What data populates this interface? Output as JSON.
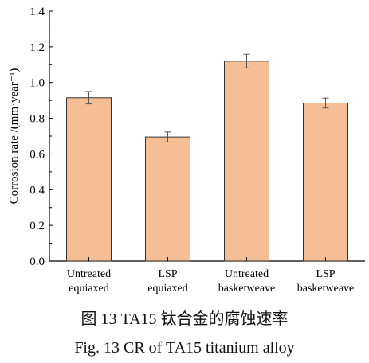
{
  "chart_data": {
    "type": "bar",
    "categories": [
      [
        "Untreated",
        "equiaxed"
      ],
      [
        "LSP",
        "equiaxed"
      ],
      [
        "Untreated",
        "basketweave"
      ],
      [
        "LSP",
        "basketweave"
      ]
    ],
    "values": [
      0.915,
      0.695,
      1.12,
      0.885
    ],
    "errors": [
      0.035,
      0.028,
      0.038,
      0.028
    ],
    "ylabel": "Corrosion rate /(mm·year⁻¹)",
    "xlabel": "",
    "ylim": [
      0,
      1.4
    ],
    "yticks": [
      "0.0",
      "0.2",
      "0.4",
      "0.6",
      "0.8",
      "1.0",
      "1.2",
      "1.4"
    ],
    "grid": false,
    "colors": {
      "bar_fill": "#F5BE94",
      "bar_stroke": "#333333",
      "axis": "#000000"
    }
  },
  "captions": {
    "zh": "图 13 TA15 钛合金的腐蚀速率",
    "en": "Fig. 13 CR of TA15 titanium alloy"
  }
}
